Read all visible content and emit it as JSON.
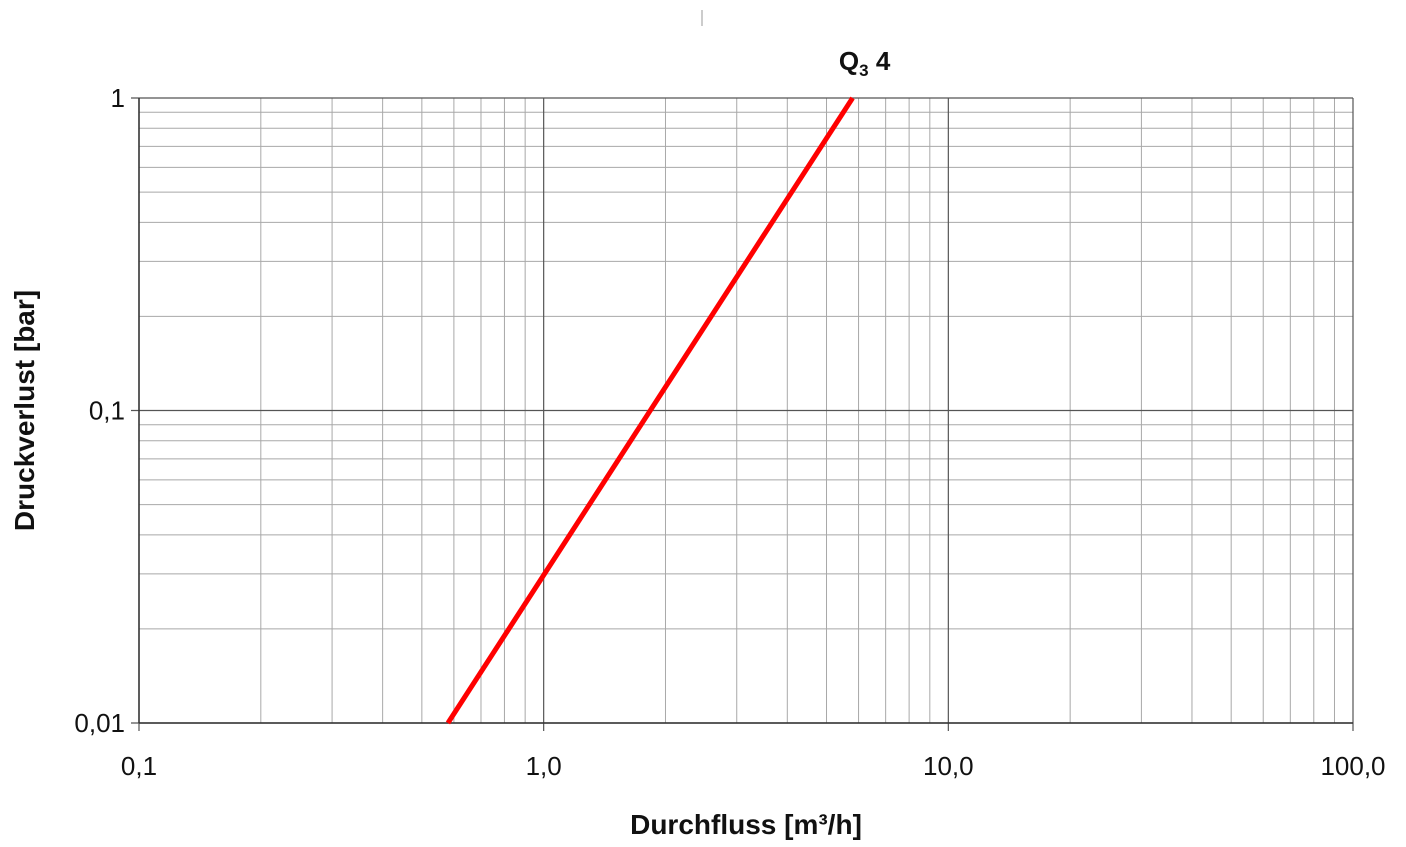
{
  "chart_data": {
    "type": "line",
    "title": "",
    "xlabel": "Durchfluss [m³/h]",
    "ylabel": "Druckverlust [bar]",
    "x_scale": "log",
    "y_scale": "log",
    "xlim": [
      0.1,
      100
    ],
    "ylim": [
      0.01,
      1
    ],
    "x_ticks": [
      {
        "value": 0.1,
        "label": "0,1"
      },
      {
        "value": 1,
        "label": "1,0"
      },
      {
        "value": 10,
        "label": "10,0"
      },
      {
        "value": 100,
        "label": "100,0"
      }
    ],
    "y_ticks": [
      {
        "value": 0.01,
        "label": "0,01"
      },
      {
        "value": 0.1,
        "label": "0,1"
      },
      {
        "value": 1,
        "label": "1"
      }
    ],
    "grid": true,
    "series": [
      {
        "label_main": "Q",
        "label_sub": "3",
        "label_suffix": " 4",
        "color": "#ff0000",
        "points": [
          [
            0.58,
            0.01
          ],
          [
            5.8,
            1.0
          ]
        ]
      }
    ]
  }
}
